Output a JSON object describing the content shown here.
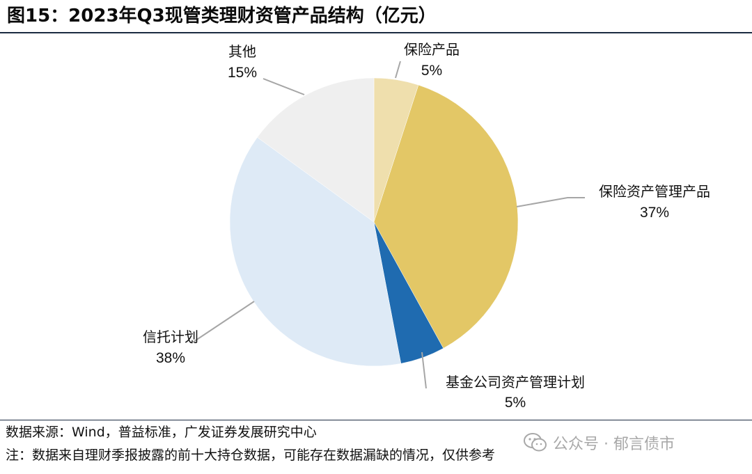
{
  "header": {
    "title": "图15：2023年Q3现管类理财资管产品结构（亿元）"
  },
  "chart_data": {
    "type": "pie",
    "title": "图15：2023年Q3现管类理财资管产品结构（亿元）",
    "slices": [
      {
        "name": "保险产品",
        "percent_label": "5%",
        "value": 5,
        "color": "#efdfad"
      },
      {
        "name": "保险资产管理产品",
        "percent_label": "37%",
        "value": 37,
        "color": "#e3c766"
      },
      {
        "name": "基金公司资产管理计划",
        "percent_label": "5%",
        "value": 5,
        "color": "#1f6bb0"
      },
      {
        "name": "信托计划",
        "percent_label": "38%",
        "value": 38,
        "color": "#deeaf6"
      },
      {
        "name": "其他",
        "percent_label": "15%",
        "value": 15,
        "color": "#efefef"
      }
    ],
    "start": "12 o'clock",
    "direction": "clockwise",
    "leader_color": "#a6a6a6"
  },
  "footer": {
    "source": "数据来源：Wind，普益标准，广发证券发展研究中心",
    "note": "注：数据来自理财季报披露的前十大持仓数据，可能存在数据漏缺的情况，仅供参考"
  },
  "watermark": {
    "text": "公众号 · 郁言债市",
    "icon": "wechat-icon"
  }
}
